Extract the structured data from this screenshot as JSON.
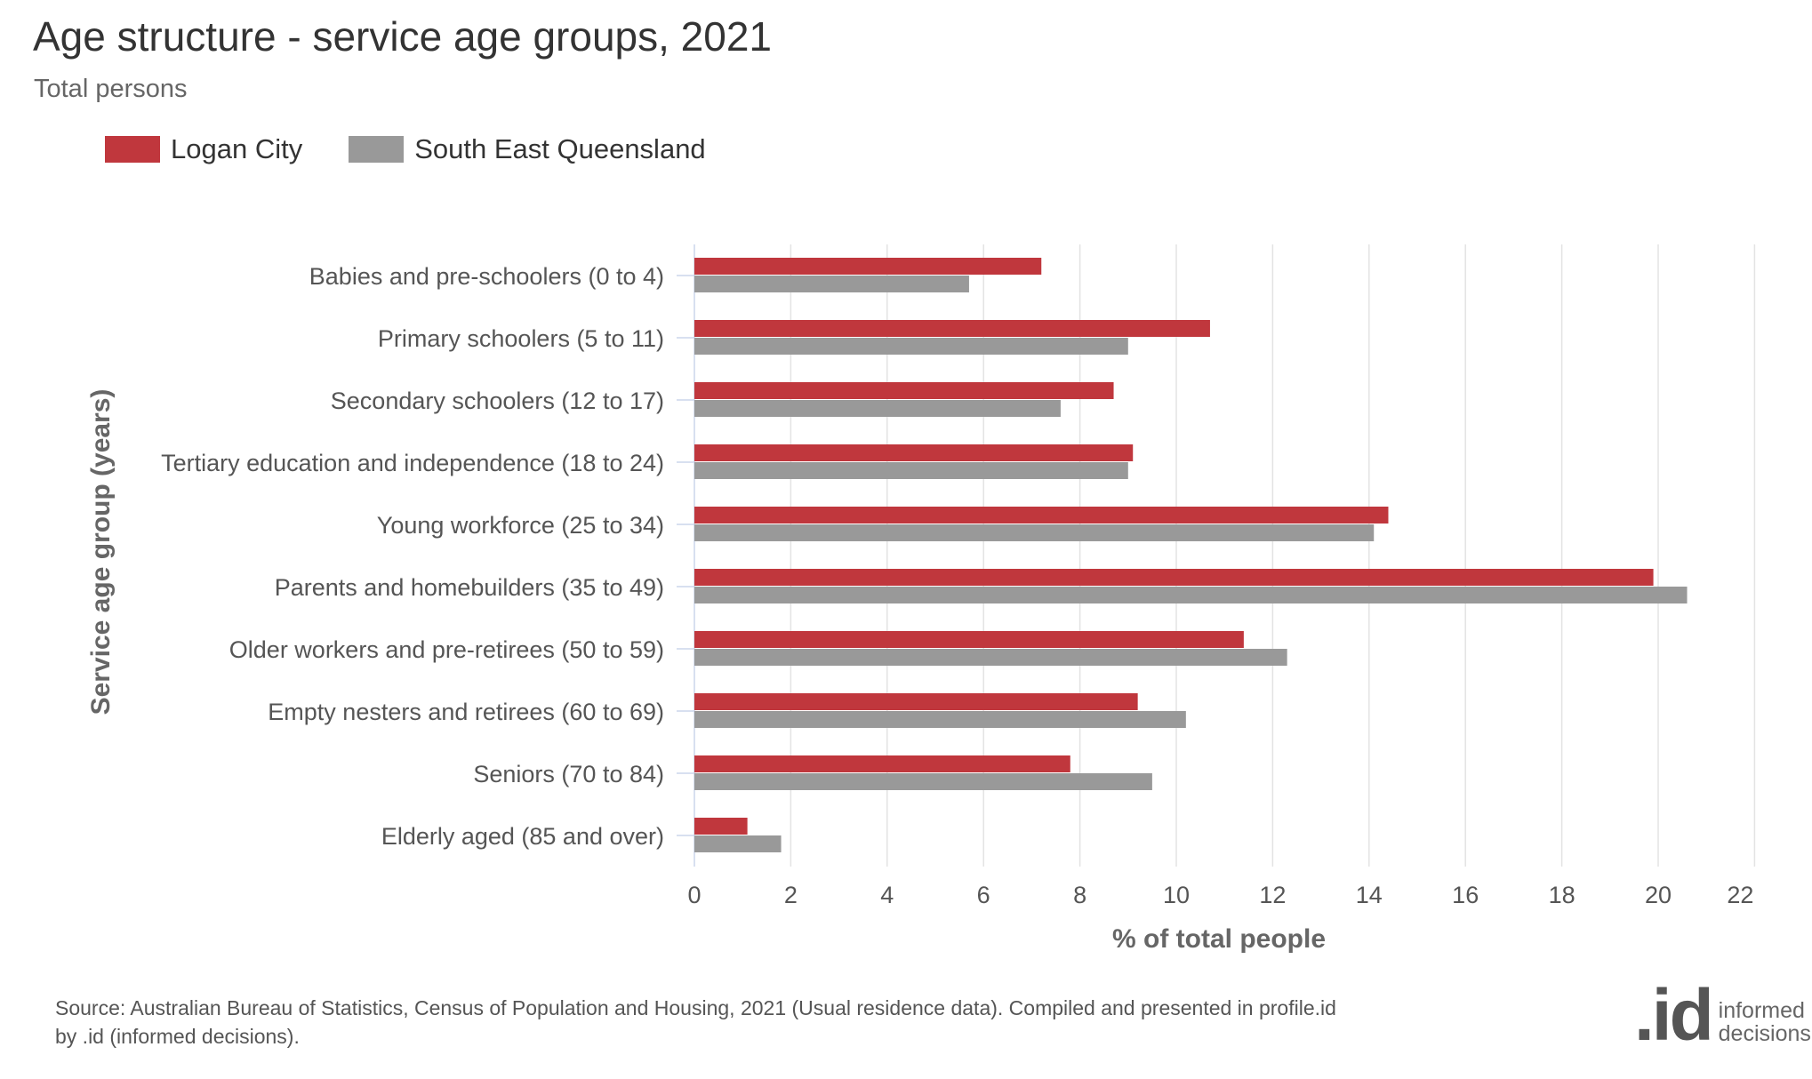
{
  "chart_data": {
    "type": "bar",
    "orientation": "horizontal",
    "title": "Age structure - service age groups, 2021",
    "subtitle": "Total persons",
    "xlabel": "% of total people",
    "ylabel": "Service age group (years)",
    "xlim": [
      0,
      22
    ],
    "xticks": [
      0,
      2,
      4,
      6,
      8,
      10,
      12,
      14,
      16,
      18,
      20,
      22
    ],
    "grid": true,
    "legend_position": "top-left",
    "categories": [
      "Babies and pre-schoolers (0 to 4)",
      "Primary schoolers (5 to 11)",
      "Secondary schoolers (12 to 17)",
      "Tertiary education and independence (18 to 24)",
      "Young workforce (25 to 34)",
      "Parents and homebuilders (35 to 49)",
      "Older workers and pre-retirees (50 to 59)",
      "Empty nesters and retirees (60 to 69)",
      "Seniors (70 to 84)",
      "Elderly aged (85 and over)"
    ],
    "series": [
      {
        "name": "Logan City",
        "color": "#c0373d",
        "values": [
          7.2,
          10.7,
          8.7,
          9.1,
          14.4,
          19.9,
          11.4,
          9.2,
          7.8,
          1.1
        ]
      },
      {
        "name": "South East Queensland",
        "color": "#999999",
        "values": [
          5.7,
          9.0,
          7.6,
          9.0,
          14.1,
          20.6,
          12.3,
          10.2,
          9.5,
          1.8
        ]
      }
    ]
  },
  "source_text": "Source: Australian Bureau of Statistics, Census of Population and Housing, 2021 (Usual residence data). Compiled and presented in profile.id by .id (informed decisions).",
  "logo": {
    "mark": ".id",
    "line1": "informed",
    "line2": "decisions"
  }
}
